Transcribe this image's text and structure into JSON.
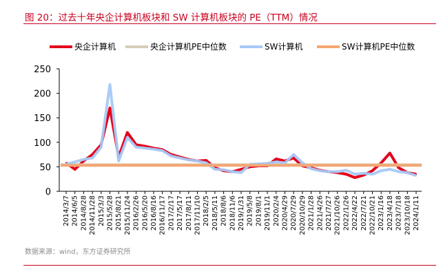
{
  "title": "图 20：过去十年央企计算机板块和 SW 计算机板块的 PE（TTM）情况",
  "source": "数据来源：wind，东方证券研究所",
  "colors": {
    "accent": "#c8001e",
    "series_central": "#e3001b",
    "series_central_median": "#d5cdb8",
    "series_sw": "#a8c8f5",
    "series_sw_median": "#f4a673"
  },
  "chart_data": {
    "type": "line",
    "title": "",
    "xlabel": "",
    "ylabel": "",
    "ylim": [
      0,
      250
    ],
    "yticks": [
      0,
      50,
      100,
      150,
      200,
      250
    ],
    "legend_position": "top",
    "grid": false,
    "x_tick_labels": [
      "2014/3/7",
      "2014/6/5",
      "2014/8/28",
      "2014/11/28",
      "2015/3/3",
      "2015/5/28",
      "2015/8/21",
      "2015/11/24",
      "2016/2/26",
      "2016/5/20",
      "2016/8/16",
      "2016/11/17",
      "2017/2/17",
      "2017/5/17",
      "2017/8/11",
      "2017/11/10",
      "2018/2/5",
      "2018/5/11",
      "2018/8/6",
      "2018/11/6",
      "2019/1/31",
      "2019/5/8",
      "2019/8/1",
      "2019/11/1",
      "2020/2/4",
      "2020/4/29",
      "2020/7/29",
      "2020/10/29",
      "2021/1/28",
      "2021/4/26",
      "2021/7/27",
      "2021/10/26",
      "2022/1/26",
      "2022/4/22",
      "2022/7/21",
      "2022/10/21",
      "2023/1/16",
      "2023/4/18",
      "2023/7/18",
      "2023/10/18",
      "2024/1/11"
    ],
    "series": [
      {
        "name": "央企计算机",
        "style": "line",
        "values": [
          58,
          45,
          62,
          75,
          95,
          170,
          70,
          120,
          95,
          92,
          88,
          85,
          75,
          70,
          65,
          62,
          63,
          48,
          42,
          40,
          45,
          50,
          52,
          52,
          66,
          62,
          68,
          52,
          48,
          43,
          40,
          38,
          35,
          28,
          33,
          42,
          58,
          78,
          48,
          38,
          35
        ]
      },
      {
        "name": "央企计算机PE中位数",
        "style": "hline",
        "values": [
          55
        ]
      },
      {
        "name": "SW计算机",
        "style": "line",
        "values": [
          55,
          60,
          65,
          68,
          90,
          218,
          62,
          110,
          90,
          88,
          86,
          83,
          72,
          68,
          64,
          62,
          58,
          45,
          44,
          40,
          38,
          55,
          56,
          57,
          60,
          58,
          75,
          58,
          46,
          42,
          40,
          40,
          43,
          35,
          37,
          35,
          42,
          45,
          40,
          38,
          32
        ]
      },
      {
        "name": "SW计算机PE中位数",
        "style": "hline",
        "values": [
          53
        ]
      }
    ]
  }
}
